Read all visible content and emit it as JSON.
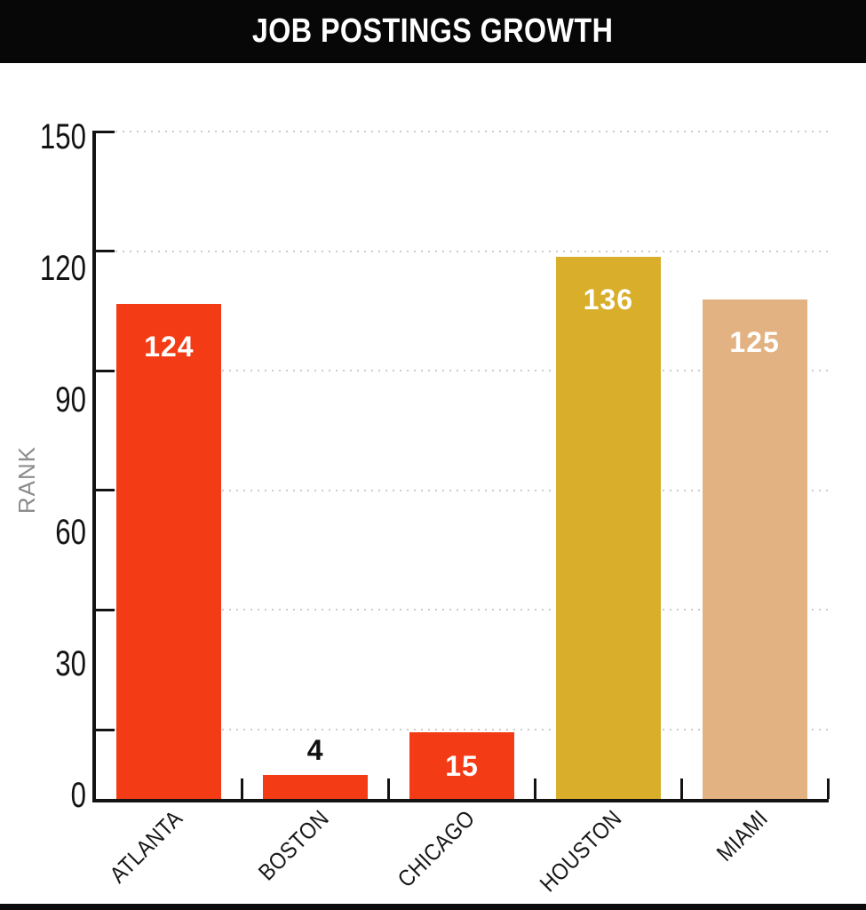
{
  "title": "JOB POSTINGS GROWTH",
  "chart_data": {
    "type": "bar",
    "title": "JOB POSTINGS GROWTH",
    "ylabel": "RANK",
    "xlabel": "",
    "categories": [
      "ATLANTA",
      "BOSTON",
      "CHICAGO",
      "HOUSTON",
      "MIAMI"
    ],
    "values": [
      124,
      4,
      15,
      136,
      125
    ],
    "value_labels": [
      "124",
      "4",
      "15",
      "136",
      "125"
    ],
    "y_ticks": [
      150,
      120,
      90,
      60,
      30,
      0
    ],
    "ylim": [
      0,
      150
    ],
    "grid": "horizontal-dotted",
    "legend": "none",
    "bar_colors": [
      "#F33B15",
      "#F33B15",
      "#F33B15",
      "#D9AE2A",
      "#E3B282"
    ],
    "value_label_colors": [
      "#FFFFFF",
      "#111111",
      "#FFFFFF",
      "#FFFFFF",
      "#FFFFFF"
    ]
  },
  "colors": {
    "title_band": "#070707",
    "title_text": "#FFFFFF",
    "background": "#FFFFFF",
    "axis": "#131313",
    "grid": "#CBCBCB",
    "tick_label": "#131313",
    "category_label": "#161616",
    "rank_label": "#8C8C8C",
    "bottom_strip": "#0B0B0B"
  }
}
